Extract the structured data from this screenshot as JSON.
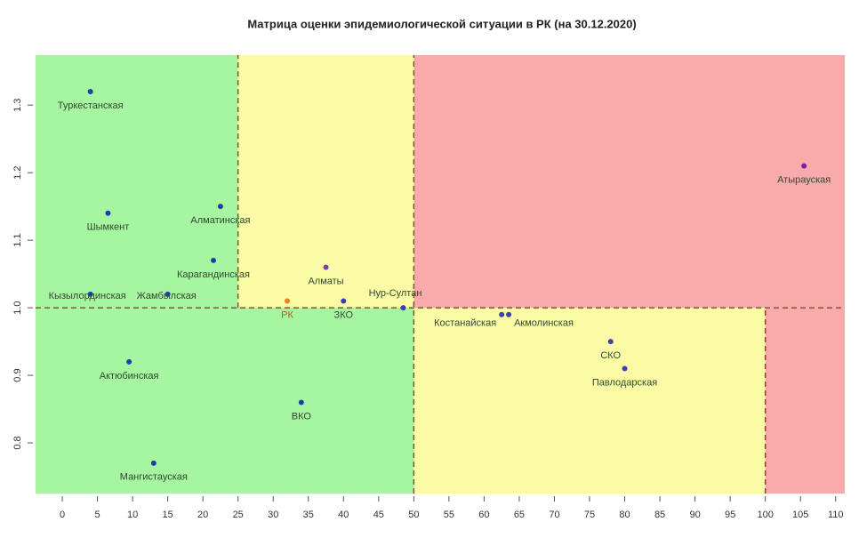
{
  "chart_data": {
    "type": "scatter",
    "title": "Матрица оценки эпидемиологической ситуации в РК (на 30.12.2020)",
    "x": [
      4,
      105.5,
      6.5,
      22.5,
      21.5,
      37.5,
      4,
      15,
      32,
      40,
      48.5,
      62.5,
      63.5,
      78,
      80,
      9.5,
      34,
      13
    ],
    "values": [
      1.32,
      1.21,
      1.14,
      1.15,
      1.07,
      1.06,
      1.02,
      1.02,
      1.01,
      1.01,
      1.0,
      0.99,
      0.99,
      0.95,
      0.91,
      0.92,
      0.86,
      0.77
    ],
    "labels": [
      "Туркестанская",
      "Атырауская",
      "Шымкент",
      "Алматинская",
      "Карагандинская",
      "Алматы",
      "Кызылординская",
      "Жамбылская",
      "РК",
      "ЗКО",
      "Нур-Султан",
      "Костанайская",
      "Акмолинская",
      "СКО",
      "Павлодарская",
      "Актюбинская",
      "ВКО",
      "Мангистауская"
    ],
    "colors": [
      "#1f3fa8",
      "#7a1fa8",
      "#1f3fa8",
      "#1f3fa8",
      "#1f3fa8",
      "#7a3fa8",
      "#1f3fa8",
      "#1f3fa8",
      "#f07f1f",
      "#3f3fa8",
      "#3f3fa8",
      "#3f3fa8",
      "#3f3fa8",
      "#3f3fa8",
      "#3f3fa8",
      "#1f3fa8",
      "#1f3fa8",
      "#1f3fa8"
    ],
    "zones": [
      {
        "x": [
          -3.8,
          25
        ],
        "y": [
          1.0,
          1.374
        ],
        "color": "#a6f5a0"
      },
      {
        "x": [
          25,
          50
        ],
        "y": [
          1.0,
          1.374
        ],
        "color": "#fbfba6"
      },
      {
        "x": [
          50,
          111.3
        ],
        "y": [
          1.0,
          1.374
        ],
        "color": "#f9aaaa"
      },
      {
        "x": [
          -3.8,
          50
        ],
        "y": [
          0.725,
          1.0
        ],
        "color": "#a6f5a0"
      },
      {
        "x": [
          50,
          100
        ],
        "y": [
          0.725,
          1.0
        ],
        "color": "#fbfba6"
      },
      {
        "x": [
          100,
          111.3
        ],
        "y": [
          0.725,
          1.0
        ],
        "color": "#f9aaaa"
      }
    ],
    "dividers_x": [
      {
        "value": 25,
        "y": [
          1.0,
          1.374
        ],
        "color": "#7a5a2a"
      },
      {
        "value": 50,
        "y": [
          0.725,
          1.374
        ],
        "color": "#7a5a2a"
      },
      {
        "value": 100,
        "y": [
          0.725,
          1.0
        ],
        "color": "#b03030"
      }
    ],
    "dividers_y": [
      {
        "value": 1.0,
        "color": "#7a5a2a"
      }
    ],
    "xlim": [
      -3.8,
      111.3
    ],
    "ylim": [
      0.725,
      1.374
    ],
    "xticks": [
      0,
      5,
      10,
      15,
      20,
      25,
      30,
      35,
      40,
      45,
      50,
      55,
      60,
      65,
      70,
      75,
      80,
      85,
      90,
      95,
      100,
      105,
      110
    ],
    "yticks": [
      0.8,
      0.9,
      {
        "value": 1,
        "label": "1.0"
      },
      1.1,
      1.2,
      1.3
    ]
  }
}
